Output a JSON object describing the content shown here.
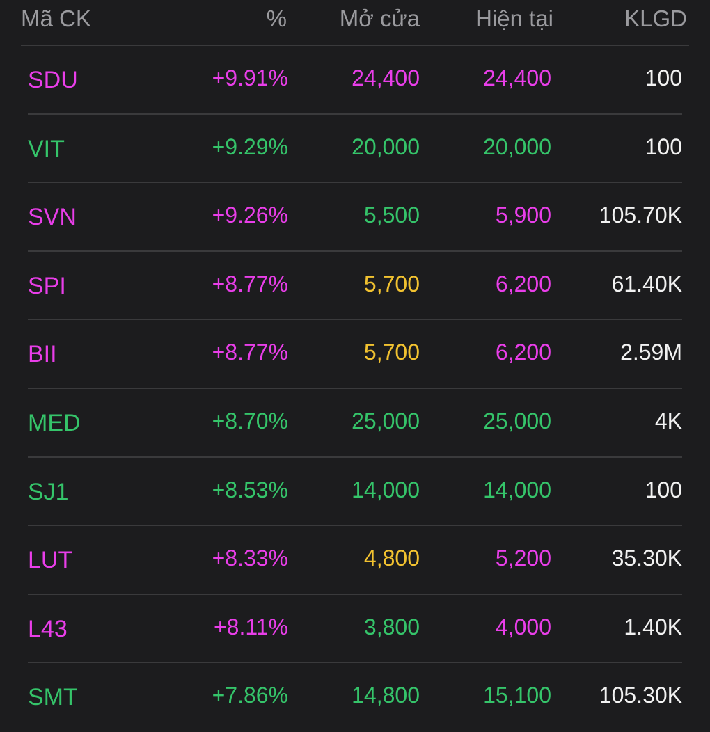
{
  "header": {
    "symbol": "Mã CK",
    "percent": "%",
    "open": "Mở cửa",
    "current": "Hiện tại",
    "volume": "KLGD"
  },
  "colors": {
    "ceiling": "#e93ee9",
    "up": "#35c46a",
    "reference": "#f2c230",
    "volume": "#f2f2f2",
    "header_text": "#9a9a9e",
    "background": "#1c1c1e",
    "divider": "#3a3a3c"
  },
  "rows": [
    {
      "symbol": "SDU",
      "percent": "+9.91%",
      "open": "24,400",
      "current": "24,400",
      "volume": "100",
      "symbol_color": "ceil",
      "percent_color": "ceil",
      "open_color": "ceil",
      "current_color": "ceil"
    },
    {
      "symbol": "VIT",
      "percent": "+9.29%",
      "open": "20,000",
      "current": "20,000",
      "volume": "100",
      "symbol_color": "up",
      "percent_color": "up",
      "open_color": "up",
      "current_color": "up"
    },
    {
      "symbol": "SVN",
      "percent": "+9.26%",
      "open": "5,500",
      "current": "5,900",
      "volume": "105.70K",
      "symbol_color": "ceil",
      "percent_color": "ceil",
      "open_color": "up",
      "current_color": "ceil"
    },
    {
      "symbol": "SPI",
      "percent": "+8.77%",
      "open": "5,700",
      "current": "6,200",
      "volume": "61.40K",
      "symbol_color": "ceil",
      "percent_color": "ceil",
      "open_color": "ref",
      "current_color": "ceil"
    },
    {
      "symbol": "BII",
      "percent": "+8.77%",
      "open": "5,700",
      "current": "6,200",
      "volume": "2.59M",
      "symbol_color": "ceil",
      "percent_color": "ceil",
      "open_color": "ref",
      "current_color": "ceil"
    },
    {
      "symbol": "MED",
      "percent": "+8.70%",
      "open": "25,000",
      "current": "25,000",
      "volume": "4K",
      "symbol_color": "up",
      "percent_color": "up",
      "open_color": "up",
      "current_color": "up"
    },
    {
      "symbol": "SJ1",
      "percent": "+8.53%",
      "open": "14,000",
      "current": "14,000",
      "volume": "100",
      "symbol_color": "up",
      "percent_color": "up",
      "open_color": "up",
      "current_color": "up"
    },
    {
      "symbol": "LUT",
      "percent": "+8.33%",
      "open": "4,800",
      "current": "5,200",
      "volume": "35.30K",
      "symbol_color": "ceil",
      "percent_color": "ceil",
      "open_color": "ref",
      "current_color": "ceil"
    },
    {
      "symbol": "L43",
      "percent": "+8.11%",
      "open": "3,800",
      "current": "4,000",
      "volume": "1.40K",
      "symbol_color": "ceil",
      "percent_color": "ceil",
      "open_color": "up",
      "current_color": "ceil"
    },
    {
      "symbol": "SMT",
      "percent": "+7.86%",
      "open": "14,800",
      "current": "15,100",
      "volume": "105.30K",
      "symbol_color": "up",
      "percent_color": "up",
      "open_color": "up",
      "current_color": "up"
    }
  ]
}
